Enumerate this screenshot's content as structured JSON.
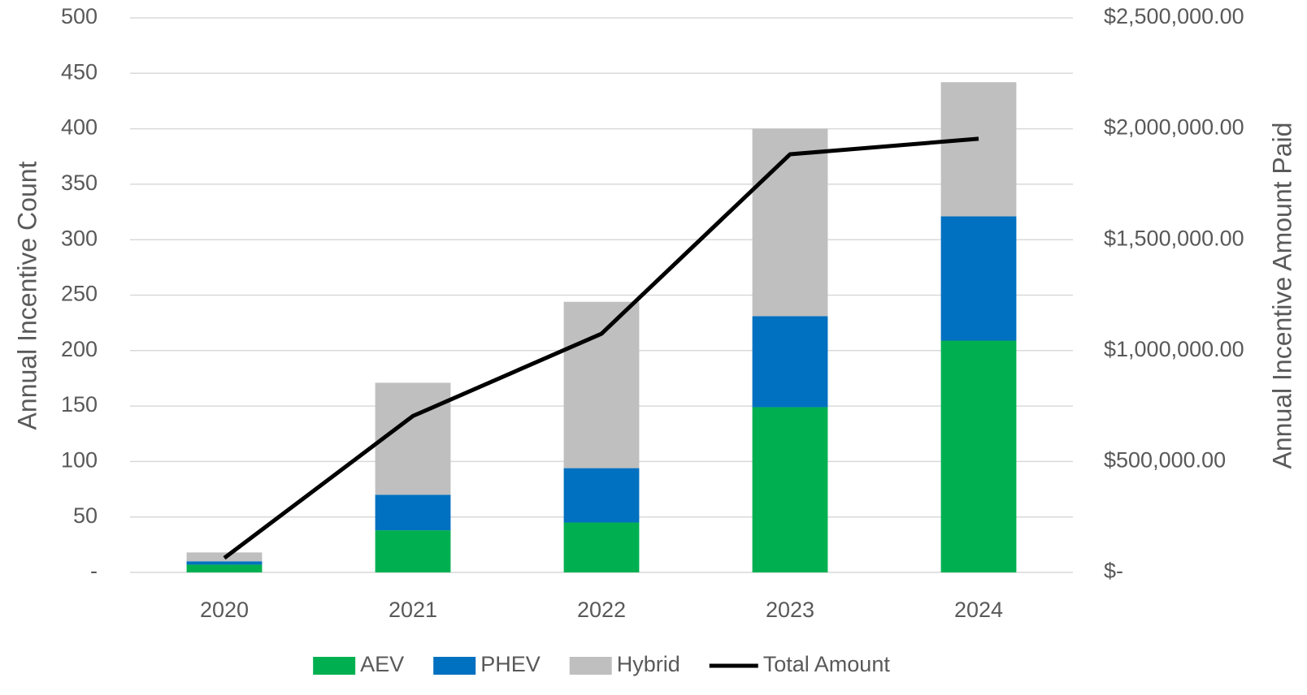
{
  "chart_data": {
    "type": "bar",
    "stacked": true,
    "categories": [
      "2020",
      "2021",
      "2022",
      "2023",
      "2024"
    ],
    "series": [
      {
        "name": "AEV",
        "color": "#00b050",
        "values": [
          7,
          38,
          45,
          149,
          209
        ]
      },
      {
        "name": "PHEV",
        "color": "#0070c0",
        "values": [
          3,
          32,
          49,
          82,
          112
        ]
      },
      {
        "name": "Hybrid",
        "color": "#bfbfbf",
        "values": [
          8,
          101,
          150,
          169,
          121
        ]
      },
      {
        "name": "Total Amount",
        "color": "#000000",
        "type": "line",
        "axis": "y2",
        "values": [
          65000,
          705000,
          1076000,
          1885000,
          1955000
        ]
      }
    ],
    "ylabel": "Annual Incentive Count",
    "y2label": "Annual Incentive Amount Paid",
    "ylim": [
      0,
      500
    ],
    "yticks": [
      {
        "value": 0,
        "label": "-"
      },
      50,
      100,
      150,
      200,
      250,
      300,
      350,
      400,
      450,
      500
    ],
    "y2lim": [
      0,
      2500000
    ],
    "y2ticks": [
      {
        "value": 0,
        "label": "$-"
      },
      {
        "value": 500000,
        "label": "$500,000.00"
      },
      {
        "value": 1000000,
        "label": "$1,000,000.00"
      },
      {
        "value": 1500000,
        "label": "$1,500,000.00"
      },
      {
        "value": 2000000,
        "label": "$2,000,000.00"
      },
      {
        "value": 2500000,
        "label": "$2,500,000.00"
      }
    ],
    "grid": true,
    "legend": "bottom"
  }
}
